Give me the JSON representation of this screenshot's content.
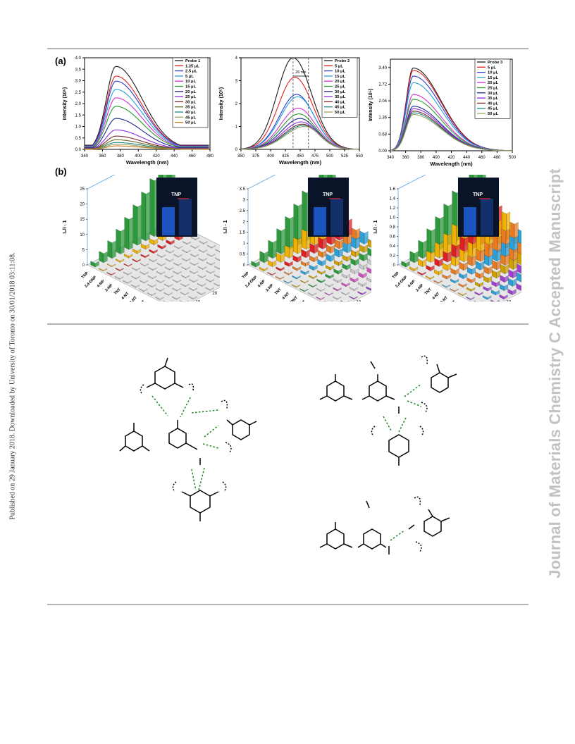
{
  "side_note": "Published on 29 January 2018. Downloaded by University of Toronto on 30/01/2018 03:11:08.",
  "watermark": "Journal of Materials Chemistry C Accepted Manuscript",
  "figure": {
    "label_a": "(a)",
    "label_b": "(b)",
    "inset_label": "TNP"
  },
  "chart_data": [
    {
      "type": "line",
      "title": "",
      "xlabel": "Wavelength (nm)",
      "ylabel": "Intensity (10⁵)",
      "xlim": [
        340,
        480
      ],
      "ylim": [
        0,
        4.0
      ],
      "xticks": [
        "340",
        "360",
        "380",
        "400",
        "420",
        "440",
        "460",
        "480"
      ],
      "yticks": [
        "0.0",
        "0.5",
        "1.0",
        "1.5",
        "2.0",
        "2.5",
        "3.0",
        "3.5",
        "4.0"
      ],
      "peak_x": 375,
      "series": [
        {
          "name": "Probe 1",
          "color": "#1a1a1a",
          "peak": 3.62
        },
        {
          "name": "1.25 μL",
          "color": "#e02020",
          "peak": 3.2
        },
        {
          "name": "2.5 μL",
          "color": "#2a3bd0",
          "peak": 2.98
        },
        {
          "name": "5 μL",
          "color": "#2aa0d8",
          "peak": 2.62
        },
        {
          "name": "10 μL",
          "color": "#d030d0",
          "peak": 2.25
        },
        {
          "name": "15 μL",
          "color": "#2a9a2a",
          "peak": 1.88
        },
        {
          "name": "20 μL",
          "color": "#1e2a90",
          "peak": 1.35
        },
        {
          "name": "25 μL",
          "color": "#8a2be2",
          "peak": 0.85
        },
        {
          "name": "30 μL",
          "color": "#7a2a2a",
          "peak": 0.58
        },
        {
          "name": "35 μL",
          "color": "#6a6a20",
          "peak": 0.42
        },
        {
          "name": "40 μL",
          "color": "#208a8a",
          "peak": 0.3
        },
        {
          "name": "45 μL",
          "color": "#a0a060",
          "peak": 0.22
        },
        {
          "name": "50 μL",
          "color": "#c07a20",
          "peak": 0.15
        }
      ]
    },
    {
      "type": "line",
      "title": "",
      "xlabel": "Wavelength (nm)",
      "ylabel": "Intensity (10⁵)",
      "xlim": [
        350,
        550
      ],
      "ylim": [
        0,
        4
      ],
      "xticks": [
        "350",
        "375",
        "400",
        "425",
        "450",
        "475",
        "500",
        "525",
        "550"
      ],
      "yticks": [
        "0",
        "1",
        "2",
        "3",
        "4"
      ],
      "peak_x": 445,
      "annotation": "26 nm",
      "series": [
        {
          "name": "Probe 2",
          "color": "#1a1a1a",
          "peak": 4.0,
          "px": 438
        },
        {
          "name": "5 μL",
          "color": "#e02020",
          "peak": 3.15,
          "px": 441
        },
        {
          "name": "10 μL",
          "color": "#2a3bd0",
          "peak": 2.4,
          "px": 444
        },
        {
          "name": "15 μL",
          "color": "#2aa0d8",
          "peak": 2.3,
          "px": 446
        },
        {
          "name": "20 μL",
          "color": "#d030d0",
          "peak": 1.8,
          "px": 447
        },
        {
          "name": "25 μL",
          "color": "#2a9a2a",
          "peak": 1.55,
          "px": 448
        },
        {
          "name": "30 μL",
          "color": "#1e2a90",
          "peak": 1.35,
          "px": 450
        },
        {
          "name": "35 μL",
          "color": "#8a2be2",
          "peak": 1.2,
          "px": 452
        },
        {
          "name": "40 μL",
          "color": "#7a2a2a",
          "peak": 1.1,
          "px": 454
        },
        {
          "name": "45 μL",
          "color": "#208a8a",
          "peak": 1.05,
          "px": 456
        },
        {
          "name": "50 μL",
          "color": "#a0a060",
          "peak": 1.0,
          "px": 458
        }
      ]
    },
    {
      "type": "line",
      "title": "",
      "xlabel": "Wavelength (nm)",
      "ylabel": "Intensity (10⁵)",
      "xlim": [
        340,
        500
      ],
      "ylim": [
        0,
        3.74
      ],
      "xticks": [
        "340",
        "360",
        "380",
        "400",
        "420",
        "440",
        "460",
        "480",
        "500"
      ],
      "yticks": [
        "0.00",
        "0.68",
        "1.36",
        "2.04",
        "2.72",
        "3.40"
      ],
      "peak_x": 370,
      "series": [
        {
          "name": "Probe 3",
          "color": "#1a1a1a",
          "peak": 3.38
        },
        {
          "name": "5 μL",
          "color": "#e02020",
          "peak": 3.28
        },
        {
          "name": "10 μL",
          "color": "#2a3bd0",
          "peak": 3.05
        },
        {
          "name": "15 μL",
          "color": "#2aa0d8",
          "peak": 2.78
        },
        {
          "name": "20 μL",
          "color": "#d030d0",
          "peak": 2.3
        },
        {
          "name": "25 μL",
          "color": "#2a9a2a",
          "peak": 2.1
        },
        {
          "name": "30 μL",
          "color": "#1e2a90",
          "peak": 1.82
        },
        {
          "name": "35 μL",
          "color": "#8a2be2",
          "peak": 1.72
        },
        {
          "name": "40 μL",
          "color": "#7a2a2a",
          "peak": 1.62
        },
        {
          "name": "45 μL",
          "color": "#208a8a",
          "peak": 1.55
        },
        {
          "name": "50 μL",
          "color": "#a0a060",
          "peak": 1.48
        }
      ]
    },
    {
      "type": "bar3d",
      "ylabel": "I₀/I - 1",
      "zlabel": "Concentration (μM)",
      "ylim": [
        0,
        25
      ],
      "yticks": [
        "0",
        "5",
        "10",
        "15",
        "20",
        "25"
      ],
      "zticks": [
        "0",
        "10",
        "20",
        "30",
        "40",
        "50"
      ],
      "categories": [
        "TNP",
        "2,4-DNP",
        "4-NP",
        "2-NP",
        "TNT",
        "4-NT",
        "2-NT",
        "2,4-DNT",
        "2,6-DNT",
        "DNB",
        "NB"
      ],
      "colors": [
        "#2a9a3a",
        "#f0b000",
        "#e02020",
        "#c8c8c8",
        "#c8c8c8",
        "#c8c8c8",
        "#c8c8c8",
        "#c8c8c8",
        "#c8c8c8",
        "#c8c8c8",
        "#c8c8c8"
      ],
      "series_max": [
        24.5,
        2.2,
        1.2,
        0.3,
        0.3,
        0.3,
        0.3,
        0.3,
        0.3,
        0.3,
        0.3
      ]
    },
    {
      "type": "bar3d",
      "ylabel": "I₀/I - 1",
      "zlabel": "Concentration (μM)",
      "ylim": [
        0,
        3.5
      ],
      "yticks": [
        "0",
        "0.5",
        "1",
        "1.5",
        "2",
        "2.5",
        "3",
        "3.5"
      ],
      "zticks": [
        "0",
        "10",
        "20",
        "30",
        "40",
        "50"
      ],
      "categories": [
        "TNP",
        "2,4-DNP",
        "4-NP",
        "2-NP",
        "TNT",
        "4-NT",
        "2,4-DNT",
        "2,6-DNT",
        "2-NT",
        "DNB",
        "NB"
      ],
      "colors": [
        "#2a9a3a",
        "#f0b000",
        "#e02020",
        "#e87a20",
        "#2aa0d8",
        "#d0a000",
        "#2a9a3a",
        "#c8c8c8",
        "#d050c0",
        "#c8c8c8",
        "#a040d0"
      ],
      "series_max": [
        3.5,
        1.6,
        0.7,
        0.45,
        0.5,
        0.3,
        0.35,
        0.25,
        0.3,
        0.2,
        0.2
      ]
    },
    {
      "type": "bar3d",
      "ylabel": "I₀/I - 1",
      "zlabel": "Concentration (μM)",
      "ylim": [
        0,
        1.6
      ],
      "yticks": [
        "0",
        "0.2",
        "0.4",
        "0.6",
        "0.8",
        "1.0",
        "1.2",
        "1.4",
        "1.6"
      ],
      "zticks": [
        "0",
        "10",
        "20",
        "30",
        "40",
        "50"
      ],
      "categories": [
        "TNP",
        "2,4-DNP",
        "4-NP",
        "2-NP",
        "TNT",
        "4-NT",
        "2-NT",
        "2,4-DNT",
        "2,6-DNT",
        "DNB",
        "NB"
      ],
      "colors": [
        "#2a9a3a",
        "#f0b000",
        "#e02020",
        "#f0b000",
        "#e87a20",
        "#2aa0d8",
        "#e87a20",
        "#d0a000",
        "#a040d0",
        "#2aa0d8",
        "#a040d0"
      ],
      "series_max": [
        1.6,
        0.95,
        0.6,
        0.55,
        0.42,
        0.35,
        0.3,
        0.3,
        0.25,
        0.3,
        0.25
      ]
    }
  ]
}
